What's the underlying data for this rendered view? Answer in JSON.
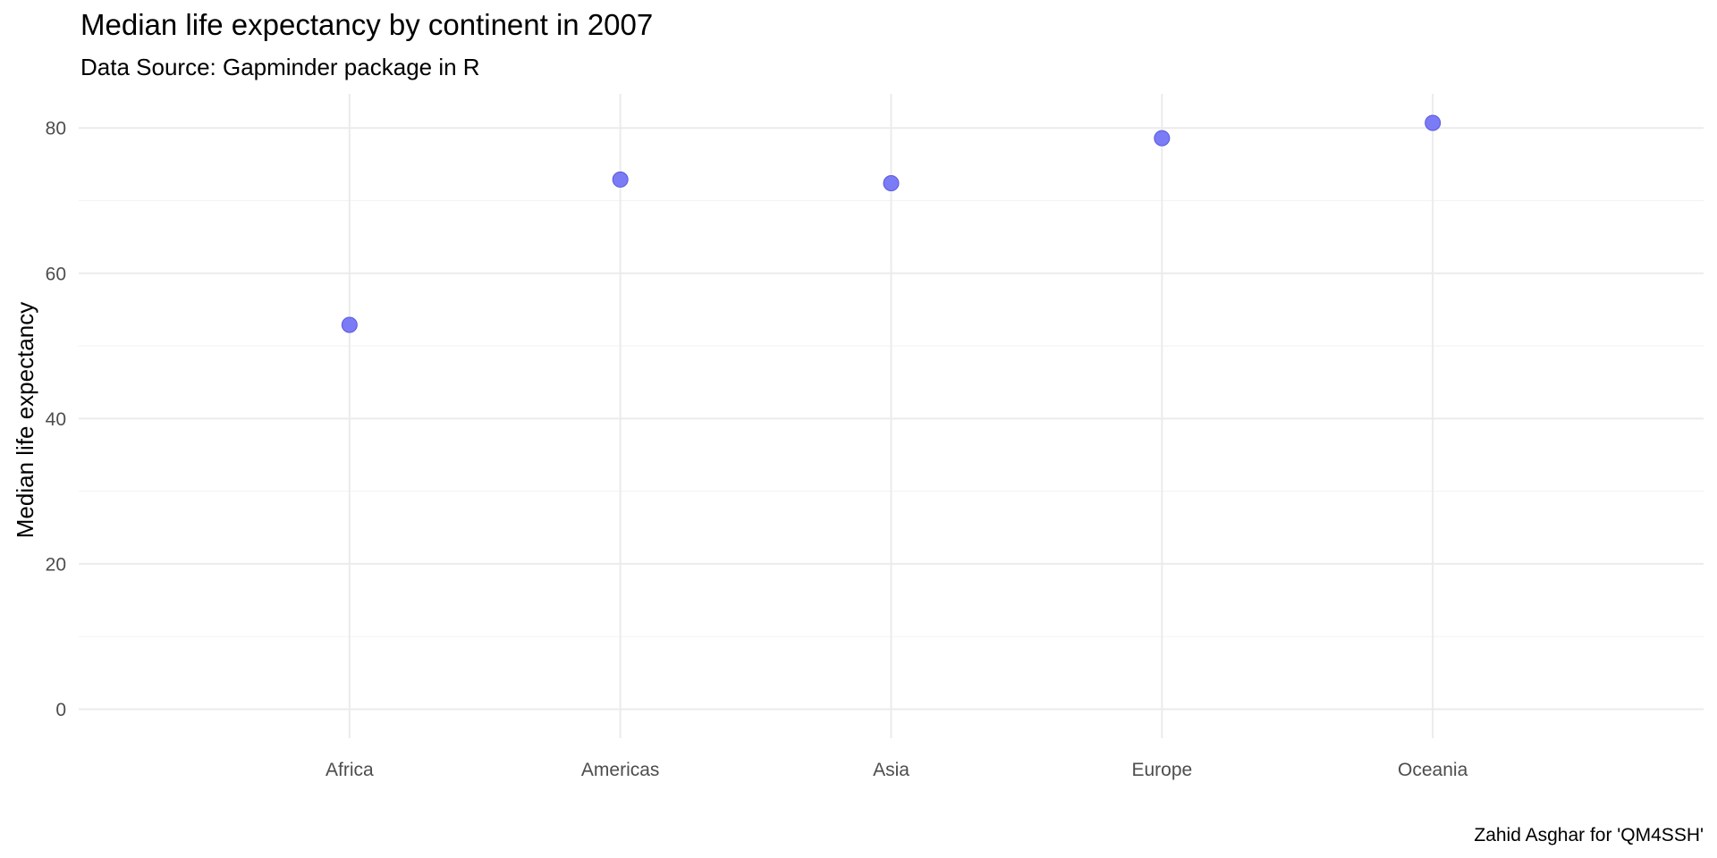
{
  "chart_data": {
    "type": "scatter",
    "title": "Median life expectancy by continent in 2007",
    "subtitle": "Data Source: Gapminder package in R",
    "xlabel": "",
    "ylabel": "Median life expectancy",
    "caption": "Zahid Asghar for 'QM4SSH'",
    "categories": [
      "Africa",
      "Americas",
      "Asia",
      "Europe",
      "Oceania"
    ],
    "values": [
      52.9,
      72.9,
      72.4,
      78.6,
      80.7
    ],
    "ylim": [
      -4.0,
      84.7
    ],
    "yticks": [
      0,
      20,
      40,
      60,
      80
    ],
    "grid": true,
    "point_color": "#7b7bf6",
    "point_stroke": "#5858e0",
    "grid_color": "#ebebeb"
  }
}
